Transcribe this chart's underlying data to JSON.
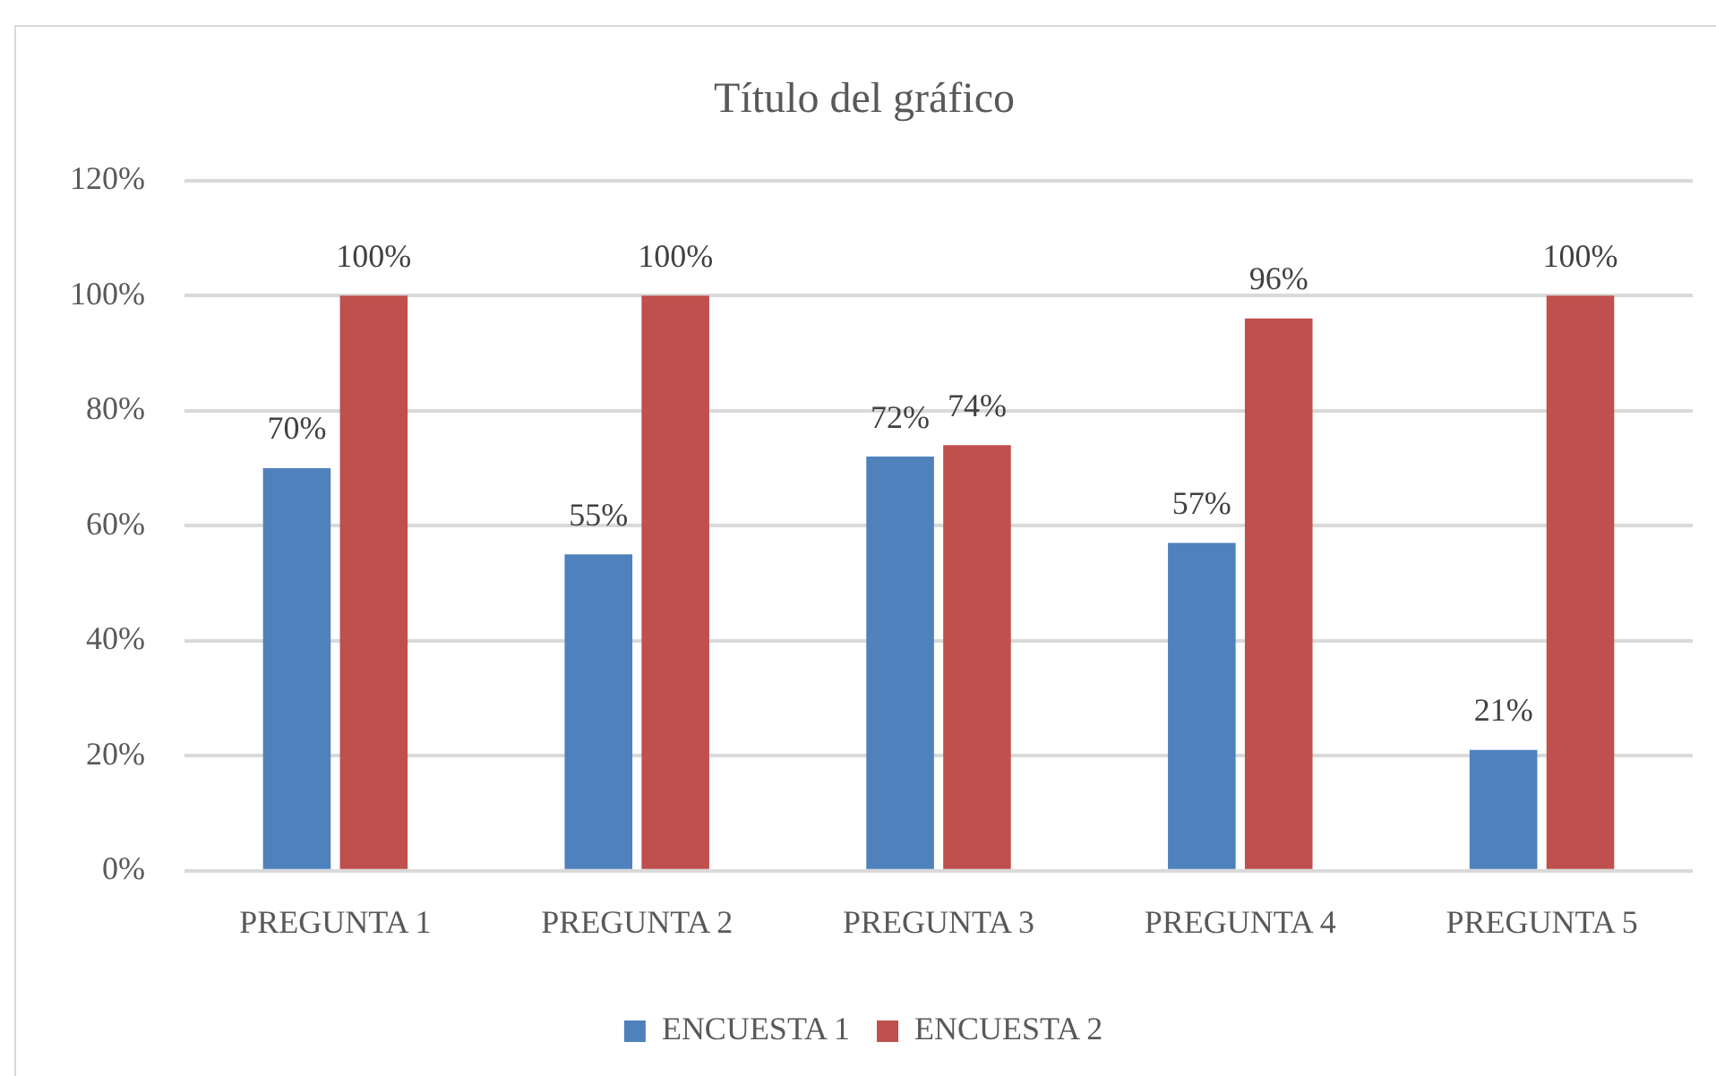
{
  "chart_data": {
    "type": "bar",
    "title": "Título del gráfico",
    "categories": [
      "PREGUNTA 1",
      "PREGUNTA 2",
      "PREGUNTA 3",
      "PREGUNTA 4",
      "PREGUNTA 5"
    ],
    "series": [
      {
        "name": "ENCUESTA 1",
        "color": "#4f81bd",
        "values": [
          70,
          55,
          72,
          57,
          21
        ],
        "value_labels": [
          "70%",
          "55%",
          "72%",
          "57%",
          "21%"
        ]
      },
      {
        "name": "ENCUESTA 2",
        "color": "#c0504d",
        "values": [
          100,
          100,
          74,
          96,
          100
        ],
        "value_labels": [
          "100%",
          "100%",
          "74%",
          "96%",
          "100%"
        ]
      }
    ],
    "ylim": [
      0,
      120
    ],
    "yticks": [
      {
        "value": 0,
        "label": "0%"
      },
      {
        "value": 20,
        "label": "20%"
      },
      {
        "value": 40,
        "label": "40%"
      },
      {
        "value": 60,
        "label": "60%"
      },
      {
        "value": 80,
        "label": "80%"
      },
      {
        "value": 100,
        "label": "100%"
      },
      {
        "value": 120,
        "label": "120%"
      }
    ],
    "grid": "y",
    "legend": "bottom"
  }
}
